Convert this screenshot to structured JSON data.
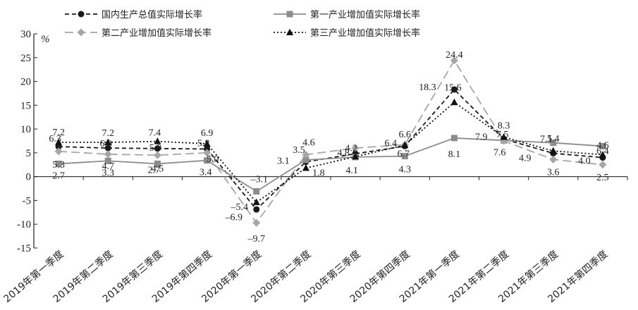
{
  "chart_data": {
    "type": "line",
    "unit": "%",
    "ylim": [
      -15,
      30
    ],
    "yticks": [
      -15,
      -10,
      -5,
      0,
      5,
      10,
      15,
      20,
      25,
      30
    ],
    "grid": false,
    "legend_position": "top",
    "categories": [
      "2019年第一季度",
      "2019年第二季度",
      "2019年第三季度",
      "2019年第四季度",
      "2020年第一季度",
      "2020年第二季度",
      "2020年第三季度",
      "2020年第四季度",
      "2021年第一季度",
      "2021年第二季度",
      "2021年第三季度",
      "2021年第四季度"
    ],
    "series": [
      {
        "name": "国内生产总值实际增长率",
        "color": "#1a1a1a",
        "style": "dashed",
        "marker": "circle",
        "values": [
          6.3,
          6.0,
          5.9,
          5.8,
          -6.9,
          3.1,
          4.8,
          6.4,
          18.3,
          7.9,
          4.9,
          4.0
        ]
      },
      {
        "name": "第一产业增加值实际增长率",
        "color": "#8c8c8c",
        "style": "solid",
        "marker": "square",
        "values": [
          2.7,
          3.3,
          2.7,
          3.4,
          -3.1,
          3.5,
          4.1,
          4.3,
          8.1,
          7.6,
          7.1,
          6.4
        ]
      },
      {
        "name": "第二产业增加值实际增长率",
        "color": "#a6a6a6",
        "style": "longdash",
        "marker": "diamond",
        "values": [
          5.3,
          4.7,
          4.5,
          5.0,
          -9.7,
          4.6,
          6.0,
          6.7,
          24.4,
          7.5,
          3.6,
          2.5
        ]
      },
      {
        "name": "第三产业增加值实际增长率",
        "color": "#111111",
        "style": "dotted",
        "marker": "triangle",
        "values": [
          7.2,
          7.2,
          7.4,
          6.9,
          -5.4,
          1.8,
          4.2,
          6.6,
          15.6,
          8.3,
          5.4,
          4.6
        ]
      }
    ],
    "data_labels": [
      {
        "text": "7.2",
        "series": 3,
        "index": 0
      },
      {
        "text": "6.3",
        "series": 0,
        "index": 0
      },
      {
        "text": "5.3",
        "series": 2,
        "index": 0
      },
      {
        "text": "2.7",
        "series": 1,
        "index": 0
      },
      {
        "text": "7.2",
        "series": 3,
        "index": 1
      },
      {
        "text": "6.0",
        "series": 0,
        "index": 1
      },
      {
        "text": "4.7",
        "series": 2,
        "index": 1
      },
      {
        "text": "3.3",
        "series": 1,
        "index": 1
      },
      {
        "text": "5.9",
        "series": 0,
        "index": 2
      },
      {
        "text": "7.4",
        "series": 3,
        "index": 2
      },
      {
        "text": "4.5",
        "series": 2,
        "index": 2
      },
      {
        "text": "2.7",
        "series": 1,
        "index": 2
      },
      {
        "text": "5.8",
        "series": 0,
        "index": 3
      },
      {
        "text": "6.9",
        "series": 3,
        "index": 3
      },
      {
        "text": "5.0",
        "series": 2,
        "index": 3
      },
      {
        "text": "3.4",
        "series": 1,
        "index": 3
      },
      {
        "text": "–3.1",
        "series": 1,
        "index": 4
      },
      {
        "text": "–5.4",
        "series": 3,
        "index": 4
      },
      {
        "text": "–6.9",
        "series": 0,
        "index": 4
      },
      {
        "text": "–9.7",
        "series": 2,
        "index": 4
      },
      {
        "text": "3.5",
        "series": 1,
        "index": 5
      },
      {
        "text": "4.6",
        "series": 2,
        "index": 5
      },
      {
        "text": "3.1",
        "series": 0,
        "index": 5
      },
      {
        "text": "1.8",
        "series": 3,
        "index": 5
      },
      {
        "text": "4.8",
        "series": 0,
        "index": 6
      },
      {
        "text": "4.2",
        "series": 3,
        "index": 6
      },
      {
        "text": "4.1",
        "series": 1,
        "index": 6
      },
      {
        "text": "6.4",
        "series": 0,
        "index": 7
      },
      {
        "text": "6.6",
        "series": 3,
        "index": 7
      },
      {
        "text": "6.7",
        "series": 2,
        "index": 7
      },
      {
        "text": "4.3",
        "series": 1,
        "index": 7
      },
      {
        "text": "24.4",
        "series": 2,
        "index": 8
      },
      {
        "text": "18.3",
        "series": 0,
        "index": 8
      },
      {
        "text": "15.6",
        "series": 3,
        "index": 8
      },
      {
        "text": "8.1",
        "series": 1,
        "index": 8
      },
      {
        "text": "8.3",
        "series": 3,
        "index": 9
      },
      {
        "text": "7.9",
        "series": 0,
        "index": 9
      },
      {
        "text": "7.5",
        "series": 2,
        "index": 9
      },
      {
        "text": "7.6",
        "series": 1,
        "index": 9
      },
      {
        "text": "5.4",
        "series": 3,
        "index": 10
      },
      {
        "text": "4.9",
        "series": 0,
        "index": 10
      },
      {
        "text": "7.1",
        "series": 1,
        "index": 10
      },
      {
        "text": "3.6",
        "series": 2,
        "index": 10
      },
      {
        "text": "4.6",
        "series": 3,
        "index": 11
      },
      {
        "text": "4.0",
        "series": 0,
        "index": 11
      },
      {
        "text": "6.4",
        "series": 1,
        "index": 11
      },
      {
        "text": "2.5",
        "series": 2,
        "index": 11
      }
    ]
  }
}
